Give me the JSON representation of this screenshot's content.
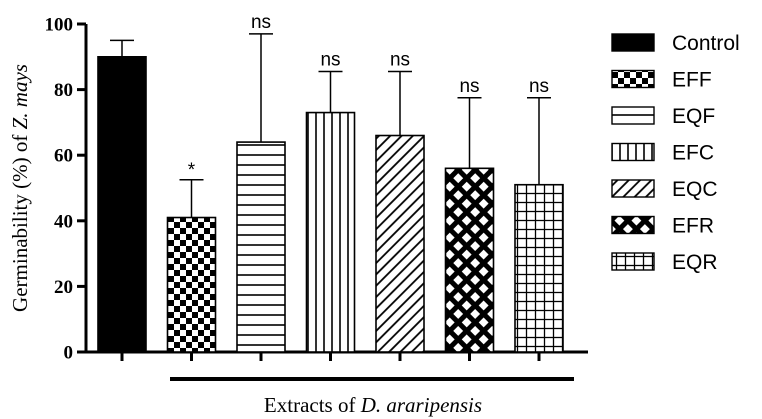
{
  "chart_data": {
    "type": "bar",
    "categories": [
      "Control",
      "EFF",
      "EQF",
      "EFC",
      "EQC",
      "EFR",
      "EQR"
    ],
    "values": [
      90,
      41,
      64,
      73,
      66,
      56,
      51
    ],
    "error_upper": [
      95,
      52.5,
      97,
      85.5,
      85.5,
      77.5,
      77.5
    ],
    "significance": [
      "",
      "*",
      "ns",
      "ns",
      "ns",
      "ns",
      "ns"
    ],
    "patterns": [
      "solid",
      "checker",
      "horizontal",
      "vertical",
      "diagonal",
      "diamond",
      "grid"
    ],
    "ylim": [
      0,
      100
    ],
    "yticks": [
      "0",
      "20",
      "40",
      "60",
      "80",
      "100"
    ],
    "ytick_values": [
      0,
      20,
      40,
      60,
      80,
      100
    ],
    "ylabel": {
      "prefix": "Germinability (%) of ",
      "species": "Z. mays"
    },
    "xlabel": {
      "prefix": "Extracts of ",
      "species": "D. araripensis"
    },
    "legend": {
      "position": "right",
      "entries": [
        "Control",
        "EFF",
        "EQF",
        "EFC",
        "EQC",
        "EFR",
        "EQR"
      ]
    },
    "grid": false,
    "colors": {
      "fill": "#000000",
      "background": "#ffffff"
    }
  }
}
